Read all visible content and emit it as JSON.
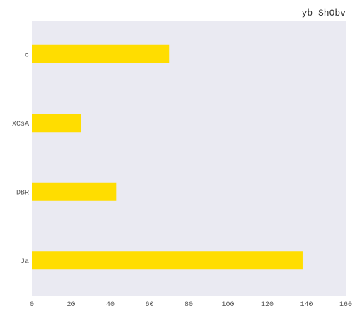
{
  "chart_data": {
    "type": "bar",
    "orientation": "horizontal",
    "title": "yb ShObv",
    "xlabel": "",
    "ylabel": "",
    "categories": [
      "c",
      "XCsA",
      "DBR",
      "Ja"
    ],
    "values": [
      70,
      25,
      43,
      138
    ],
    "xlim": [
      0,
      160
    ],
    "xticks": [
      0,
      20,
      40,
      60,
      80,
      100,
      120,
      140,
      160
    ],
    "grid": false,
    "legend": "none",
    "colors": {
      "bar": "#ffdd00",
      "plot_background": "#eaeaf2"
    }
  }
}
